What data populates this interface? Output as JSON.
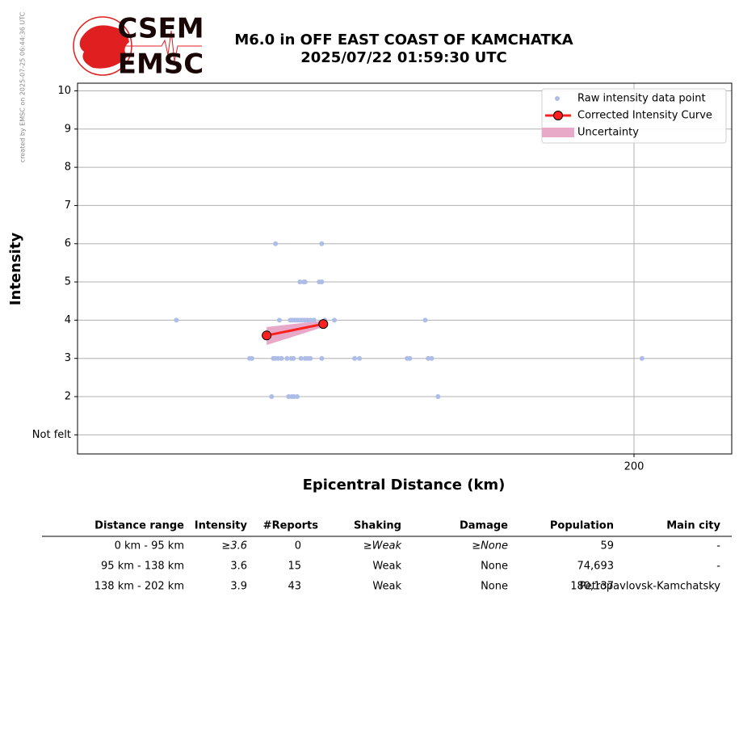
{
  "credit": "created by EMSC on 2025-07-25 06:44:36 UTC",
  "logo": {
    "top": "CSEM",
    "bottom": "EMSC"
  },
  "chart_data": {
    "type": "scatter",
    "title": "M6.0 in OFF EAST COAST OF KAMCHATKA",
    "subtitle": "2025/07/22 01:59:30 UTC",
    "xlabel": "Epicentral Distance (km)",
    "ylabel": "Intensity",
    "xscale": "log",
    "xlim": [
      81.2,
      234.3
    ],
    "xticks": [
      200
    ],
    "ylim": [
      0.5,
      10.2
    ],
    "yticks": [
      {
        "value": 1,
        "label": "Not felt"
      },
      2,
      3,
      4,
      5,
      6,
      7,
      8,
      9,
      10
    ],
    "grid": true,
    "legend": "upper right",
    "series": [
      {
        "name": "Raw intensity data point",
        "color": "#aebde8",
        "x": [
          95.3,
          112.6,
          114.6,
          115.0,
          115.5,
          115.9,
          116.4,
          116.8,
          117.3,
          117.8,
          118.4,
          119.1,
          121.2,
          123.1,
          142.6,
          111.9,
          120.6,
          116.4,
          117.1,
          117.4,
          120.1,
          120.6,
          107.3,
          107.7,
          111.5,
          111.9,
          112.4,
          113.0,
          114.0,
          114.8,
          115.2,
          116.6,
          117.4,
          117.9,
          118.4,
          120.6,
          127.2,
          128.2,
          138.5,
          139.1,
          143.3,
          144.1,
          202.6,
          111.2,
          114.3,
          114.9,
          115.3,
          115.9,
          145.6
        ],
        "values": [
          4,
          4,
          4,
          4,
          4,
          4,
          4,
          4,
          4,
          4,
          4,
          4,
          4,
          4,
          4,
          6,
          6,
          5,
          5,
          5,
          5,
          5,
          3,
          3,
          3,
          3,
          3,
          3,
          3,
          3,
          3,
          3,
          3,
          3,
          3,
          3,
          3,
          3,
          3,
          3,
          3,
          3,
          3,
          2,
          2,
          2,
          2,
          2,
          2
        ]
      },
      {
        "name": "Corrected Intensity Curve",
        "color": "#ff2020",
        "x": [
          110.3,
          120.9
        ],
        "values": [
          3.6,
          3.9
        ]
      }
    ],
    "uncertainty": {
      "name": "Uncertainty",
      "color": "#e8a8c8",
      "x": [
        110.3,
        120.9
      ],
      "upper": [
        3.82,
        3.99
      ],
      "lower": [
        3.35,
        3.82
      ]
    }
  },
  "table": {
    "columns": [
      "Distance range",
      "Intensity",
      "#Reports",
      "Shaking",
      "Damage",
      "Population",
      "Main city"
    ],
    "rows": [
      [
        "0 km -   95 km",
        "≥3.6",
        "0",
        "≥Weak",
        "≥None",
        "59",
        "-"
      ],
      [
        "95 km -  138 km",
        "3.6",
        "15",
        "Weak",
        "None",
        "74,693",
        "-"
      ],
      [
        "138 km -  202 km",
        "3.9",
        "43",
        "Weak",
        "None",
        "180,137",
        "Petropavlovsk-Kamchatsky"
      ]
    ]
  }
}
